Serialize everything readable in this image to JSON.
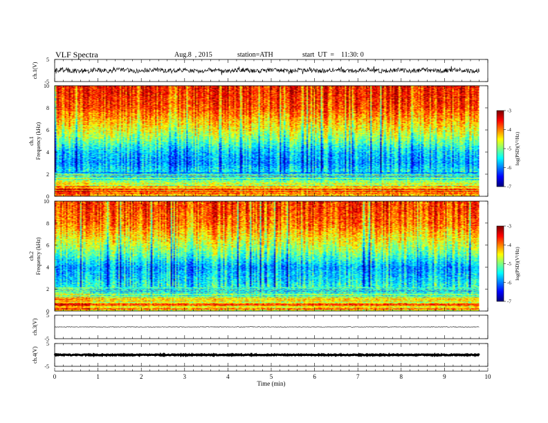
{
  "header": {
    "title": "VLF  Spectra",
    "date": "Aug.8  , 2015",
    "station": "station=ATH",
    "start": "start  UT  =    11:30: 0"
  },
  "chart_data": [
    {
      "type": "line",
      "name": "ch1-waveform",
      "ylabel": "ch.1(V)",
      "ylim": [
        -5,
        5
      ],
      "yticks": [
        "5",
        "-5"
      ],
      "xlim": [
        0,
        10
      ],
      "data_end_min": 9.8,
      "approx_mean": 0,
      "approx_amplitude": 1.0
    },
    {
      "type": "heatmap",
      "name": "ch1-spectrogram",
      "ylabel": "ch.1\nFrequency  (kHz)",
      "ylim": [
        0,
        10
      ],
      "yticks": [
        "0",
        "2",
        "4",
        "6",
        "8",
        "10"
      ],
      "xlim": [
        0,
        9.8
      ],
      "colorbar": {
        "label": "log(PSD)(V²/Hz)",
        "range": [
          -7,
          -3
        ],
        "ticks": [
          "-3",
          "-4",
          "-5",
          "-6",
          "-7"
        ]
      },
      "profile": [
        {
          "f_khz": 0.5,
          "log_psd": -4.0
        },
        {
          "f_khz": 1.5,
          "log_psd": -5.2
        },
        {
          "f_khz": 3.0,
          "log_psd": -5.9
        },
        {
          "f_khz": 4.0,
          "log_psd": -5.7
        },
        {
          "f_khz": 5.0,
          "log_psd": -5.1
        },
        {
          "f_khz": 6.0,
          "log_psd": -4.6
        },
        {
          "f_khz": 7.0,
          "log_psd": -4.2
        },
        {
          "f_khz": 8.0,
          "log_psd": -3.8
        },
        {
          "f_khz": 9.5,
          "log_psd": -3.6
        }
      ]
    },
    {
      "type": "heatmap",
      "name": "ch2-spectrogram",
      "ylabel": "ch.2\nFrequency  (kHz)",
      "ylim": [
        0,
        10
      ],
      "yticks": [
        "0",
        "2",
        "4",
        "6",
        "8",
        "10"
      ],
      "xlim": [
        0,
        9.8
      ],
      "colorbar": {
        "label": "log(PSD)(V²/Hz)",
        "range": [
          -7,
          -3
        ],
        "ticks": [
          "-3",
          "-4",
          "-5",
          "-6",
          "-7"
        ]
      },
      "profile": [
        {
          "f_khz": 0.5,
          "log_psd": -4.1
        },
        {
          "f_khz": 1.5,
          "log_psd": -5.1
        },
        {
          "f_khz": 3.0,
          "log_psd": -5.6
        },
        {
          "f_khz": 4.0,
          "log_psd": -5.8
        },
        {
          "f_khz": 5.0,
          "log_psd": -5.2
        },
        {
          "f_khz": 6.0,
          "log_psd": -4.7
        },
        {
          "f_khz": 7.0,
          "log_psd": -4.3
        },
        {
          "f_khz": 8.0,
          "log_psd": -3.9
        },
        {
          "f_khz": 9.5,
          "log_psd": -3.7
        }
      ]
    },
    {
      "type": "line",
      "name": "ch3-waveform",
      "ylabel": "ch.3(V)",
      "ylim": [
        -5,
        5
      ],
      "yticks": [
        "5",
        "-5"
      ],
      "xlim": [
        0,
        10
      ],
      "data_end_min": 9.8,
      "approx_mean": 0,
      "approx_amplitude": 0.1
    },
    {
      "type": "line",
      "name": "ch4-waveform",
      "ylabel": "ch.4(V)",
      "ylim": [
        -5,
        5
      ],
      "yticks": [
        "5",
        "-5"
      ],
      "xlim": [
        0,
        10
      ],
      "data_end_min": 9.8,
      "approx_mean": 0,
      "approx_amplitude": 0.2
    }
  ],
  "xaxis": {
    "label": "Time  (min)",
    "ticks": [
      "0",
      "1",
      "2",
      "3",
      "4",
      "5",
      "6",
      "7",
      "8",
      "9",
      "10"
    ],
    "range": [
      0,
      10
    ]
  }
}
